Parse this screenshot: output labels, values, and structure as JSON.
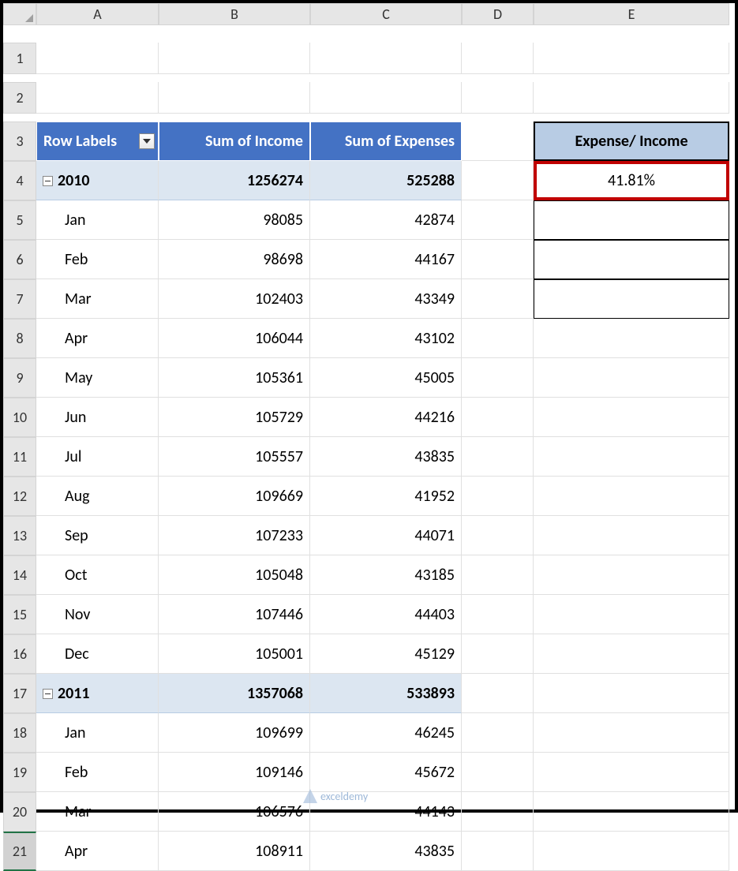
{
  "columns": [
    "A",
    "B",
    "C",
    "D",
    "E"
  ],
  "pivot": {
    "headers": [
      "Row Labels",
      "Sum of Income",
      "Sum of Expenses"
    ],
    "groups": [
      {
        "year": "2010",
        "income_total": "1256274",
        "expense_total": "525288",
        "rows": [
          {
            "month": "Jan",
            "income": "98085",
            "expense": "42874"
          },
          {
            "month": "Feb",
            "income": "98698",
            "expense": "44167"
          },
          {
            "month": "Mar",
            "income": "102403",
            "expense": "43349"
          },
          {
            "month": "Apr",
            "income": "106044",
            "expense": "43102"
          },
          {
            "month": "May",
            "income": "105361",
            "expense": "45005"
          },
          {
            "month": "Jun",
            "income": "105729",
            "expense": "44216"
          },
          {
            "month": "Jul",
            "income": "105557",
            "expense": "43835"
          },
          {
            "month": "Aug",
            "income": "109669",
            "expense": "41952"
          },
          {
            "month": "Sep",
            "income": "107233",
            "expense": "44071"
          },
          {
            "month": "Oct",
            "income": "105048",
            "expense": "43185"
          },
          {
            "month": "Nov",
            "income": "107446",
            "expense": "44403"
          },
          {
            "month": "Dec",
            "income": "105001",
            "expense": "45129"
          }
        ]
      },
      {
        "year": "2011",
        "income_total": "1357068",
        "expense_total": "533893",
        "rows": [
          {
            "month": "Jan",
            "income": "109699",
            "expense": "46245"
          },
          {
            "month": "Feb",
            "income": "109146",
            "expense": "45672"
          },
          {
            "month": "Mar",
            "income": "106576",
            "expense": "44143"
          },
          {
            "month": "Apr",
            "income": "108911",
            "expense": "43835"
          }
        ]
      }
    ]
  },
  "ratio_table": {
    "header": "Expense/ Income",
    "values": [
      "41.81%",
      "",
      "",
      ""
    ]
  },
  "row_numbers": [
    "1",
    "2",
    "3",
    "4",
    "5",
    "6",
    "7",
    "8",
    "9",
    "10",
    "11",
    "12",
    "13",
    "14",
    "15",
    "16",
    "17",
    "18",
    "19",
    "20",
    "21"
  ],
  "colors": {
    "pivot_header_bg": "#4472c4",
    "subtotal_bg": "#dce6f1",
    "ratio_header_bg": "#b8cce4",
    "highlight_border": "#c00000",
    "grid_header_bg": "#e6e6e6",
    "grid_line": "#e0e0e0",
    "selected_accent": "#217346"
  },
  "watermark": "exceldemy"
}
